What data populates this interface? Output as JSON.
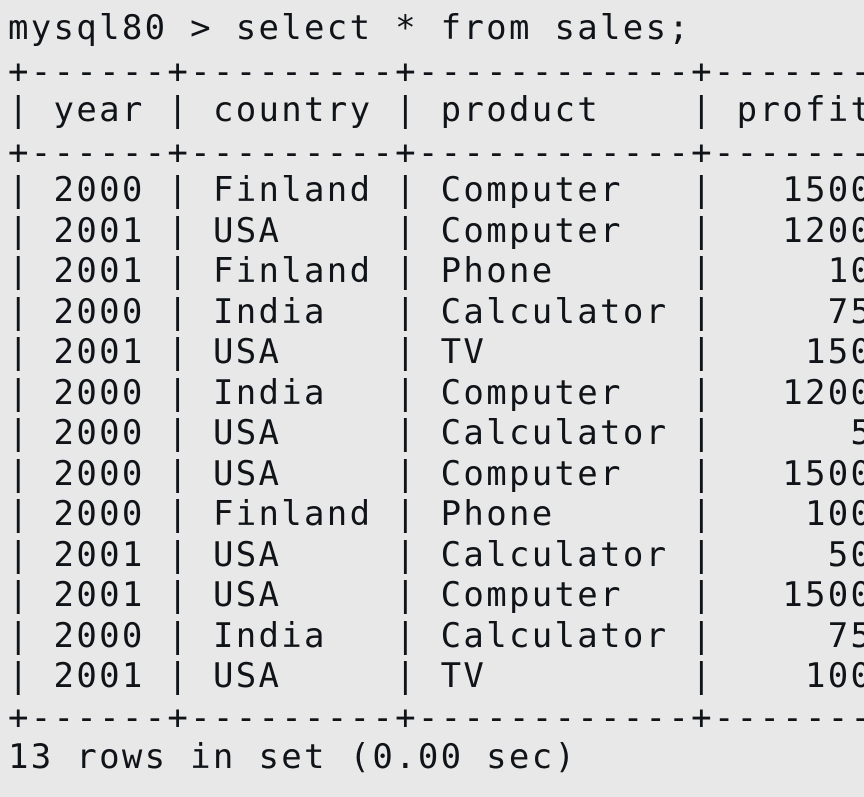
{
  "terminal": {
    "prompt": "mysql80 >",
    "command": "select * from sales;",
    "columns": [
      "year",
      "country",
      "product",
      "profit"
    ],
    "rows": [
      [
        "2000",
        "Finland",
        "Computer",
        "1500"
      ],
      [
        "2001",
        "USA",
        "Computer",
        "1200"
      ],
      [
        "2001",
        "Finland",
        "Phone",
        "10"
      ],
      [
        "2000",
        "India",
        "Calculator",
        "75"
      ],
      [
        "2001",
        "USA",
        "TV",
        "150"
      ],
      [
        "2000",
        "India",
        "Computer",
        "1200"
      ],
      [
        "2000",
        "USA",
        "Calculator",
        "5"
      ],
      [
        "2000",
        "USA",
        "Computer",
        "1500"
      ],
      [
        "2000",
        "Finland",
        "Phone",
        "100"
      ],
      [
        "2001",
        "USA",
        "Calculator",
        "50"
      ],
      [
        "2001",
        "USA",
        "Computer",
        "1500"
      ],
      [
        "2000",
        "India",
        "Calculator",
        "75"
      ],
      [
        "2001",
        "USA",
        "TV",
        "100"
      ]
    ],
    "status": "13 rows in set (0.00 sec)"
  }
}
